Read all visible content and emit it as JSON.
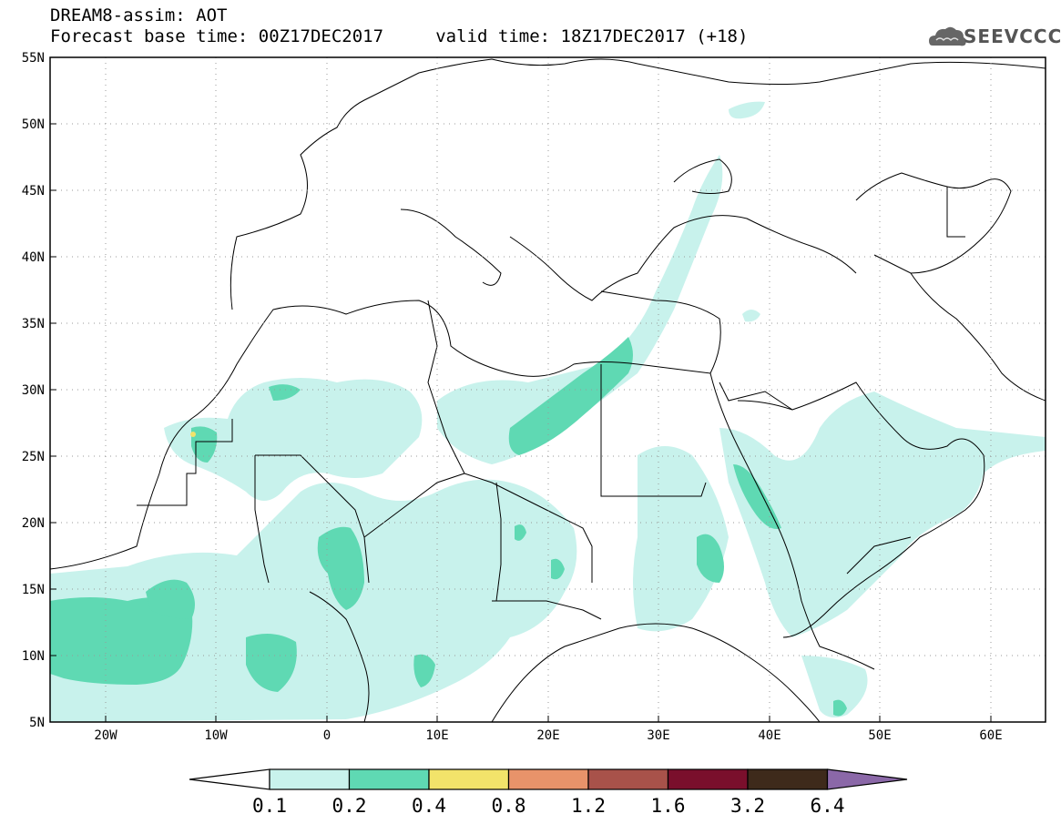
{
  "header": {
    "title_line1": "DREAM8-assim: AOT",
    "title_line2": "Forecast base time: 00Z17DEC2017     valid time: 18Z17DEC2017 (+18)",
    "logo_text": "SEEVCCC"
  },
  "axes": {
    "lat_labels": [
      "55N",
      "50N",
      "45N",
      "40N",
      "35N",
      "30N",
      "25N",
      "20N",
      "15N",
      "10N",
      "5N"
    ],
    "lon_labels": [
      "20W",
      "10W",
      "0",
      "10E",
      "20E",
      "30E",
      "40E",
      "50E",
      "60E"
    ]
  },
  "colorbar": {
    "labels": [
      "0.1",
      "0.2",
      "0.4",
      "0.8",
      "1.2",
      "1.6",
      "3.2",
      "6.4"
    ],
    "colors": [
      "#ffffff",
      "#c8f2ec",
      "#5fd9b3",
      "#f2e36a",
      "#e8936a",
      "#a8524a",
      "#7a0f2c",
      "#3e2a1b",
      "#8b68a8"
    ]
  },
  "map_colors": {
    "light": "#c8f2ec",
    "medium": "#5fd9b3",
    "high": "#f2e36a"
  }
}
